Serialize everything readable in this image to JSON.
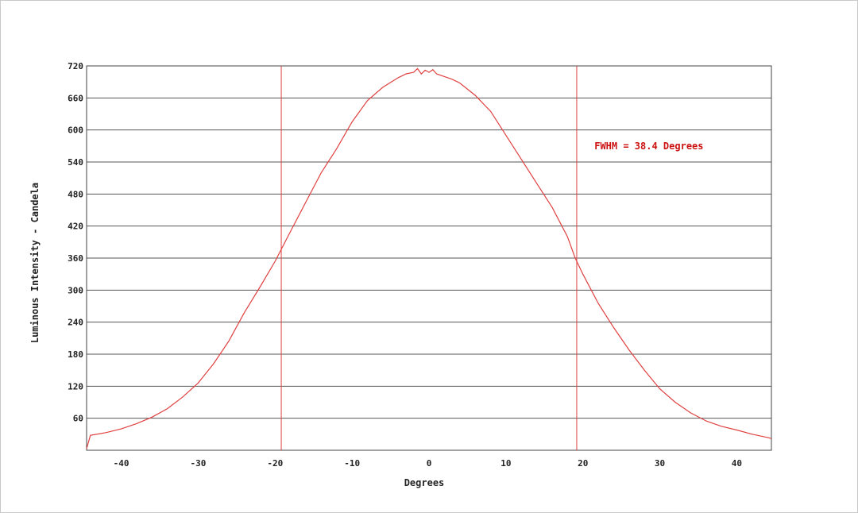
{
  "chart_data": {
    "type": "line",
    "title": "",
    "xlabel": "Degrees",
    "ylabel": "Luminous Intensity - Candela",
    "xlim": [
      -44.5,
      44.5
    ],
    "ylim": [
      0,
      720
    ],
    "x_ticks": [
      -40,
      -30,
      -20,
      -10,
      0,
      10,
      20,
      30,
      40
    ],
    "y_ticks": [
      60,
      120,
      180,
      240,
      300,
      360,
      420,
      480,
      540,
      600,
      660,
      720
    ],
    "x_tick_labels": [
      "-40",
      "-30",
      "-20",
      "-10",
      "0",
      "10",
      "20",
      "30",
      "40"
    ],
    "y_tick_labels": [
      "60",
      "120",
      "180",
      "240",
      "300",
      "360",
      "420",
      "480",
      "540",
      "600",
      "660",
      "720"
    ],
    "grid": "horizontal",
    "colors": {
      "series": "#e04040",
      "grid": "#555555",
      "annotation": "#cc1111"
    },
    "series": [
      {
        "x": [
          -44.5,
          -44,
          -42,
          -40,
          -38,
          -36,
          -34,
          -32,
          -30,
          -28,
          -26,
          -24,
          -22,
          -20,
          -18,
          -16,
          -14,
          -12,
          -10,
          -8,
          -6,
          -4,
          -3,
          -2,
          -1.5,
          -1,
          -0.5,
          0,
          0.5,
          1,
          2,
          3,
          4,
          6,
          8,
          10,
          12,
          14,
          16,
          18,
          19,
          20,
          22,
          24,
          26,
          28,
          30,
          32,
          34,
          36,
          38,
          40,
          42,
          44,
          44.5
        ],
        "y": [
          3,
          28,
          33,
          40,
          50,
          62,
          78,
          100,
          126,
          162,
          205,
          258,
          305,
          354,
          410,
          465,
          520,
          565,
          615,
          655,
          680,
          698,
          705,
          708,
          715,
          705,
          712,
          708,
          713,
          705,
          700,
          695,
          688,
          665,
          635,
          590,
          545,
          500,
          455,
          400,
          360,
          330,
          275,
          230,
          188,
          150,
          115,
          90,
          70,
          55,
          45,
          38,
          30,
          24,
          22
        ]
      }
    ],
    "vertical_lines": [
      -19.2,
      19.2
    ],
    "annotation": {
      "text": "FWHM = 38.4 Degrees",
      "x": 21.5,
      "y": 570
    }
  }
}
